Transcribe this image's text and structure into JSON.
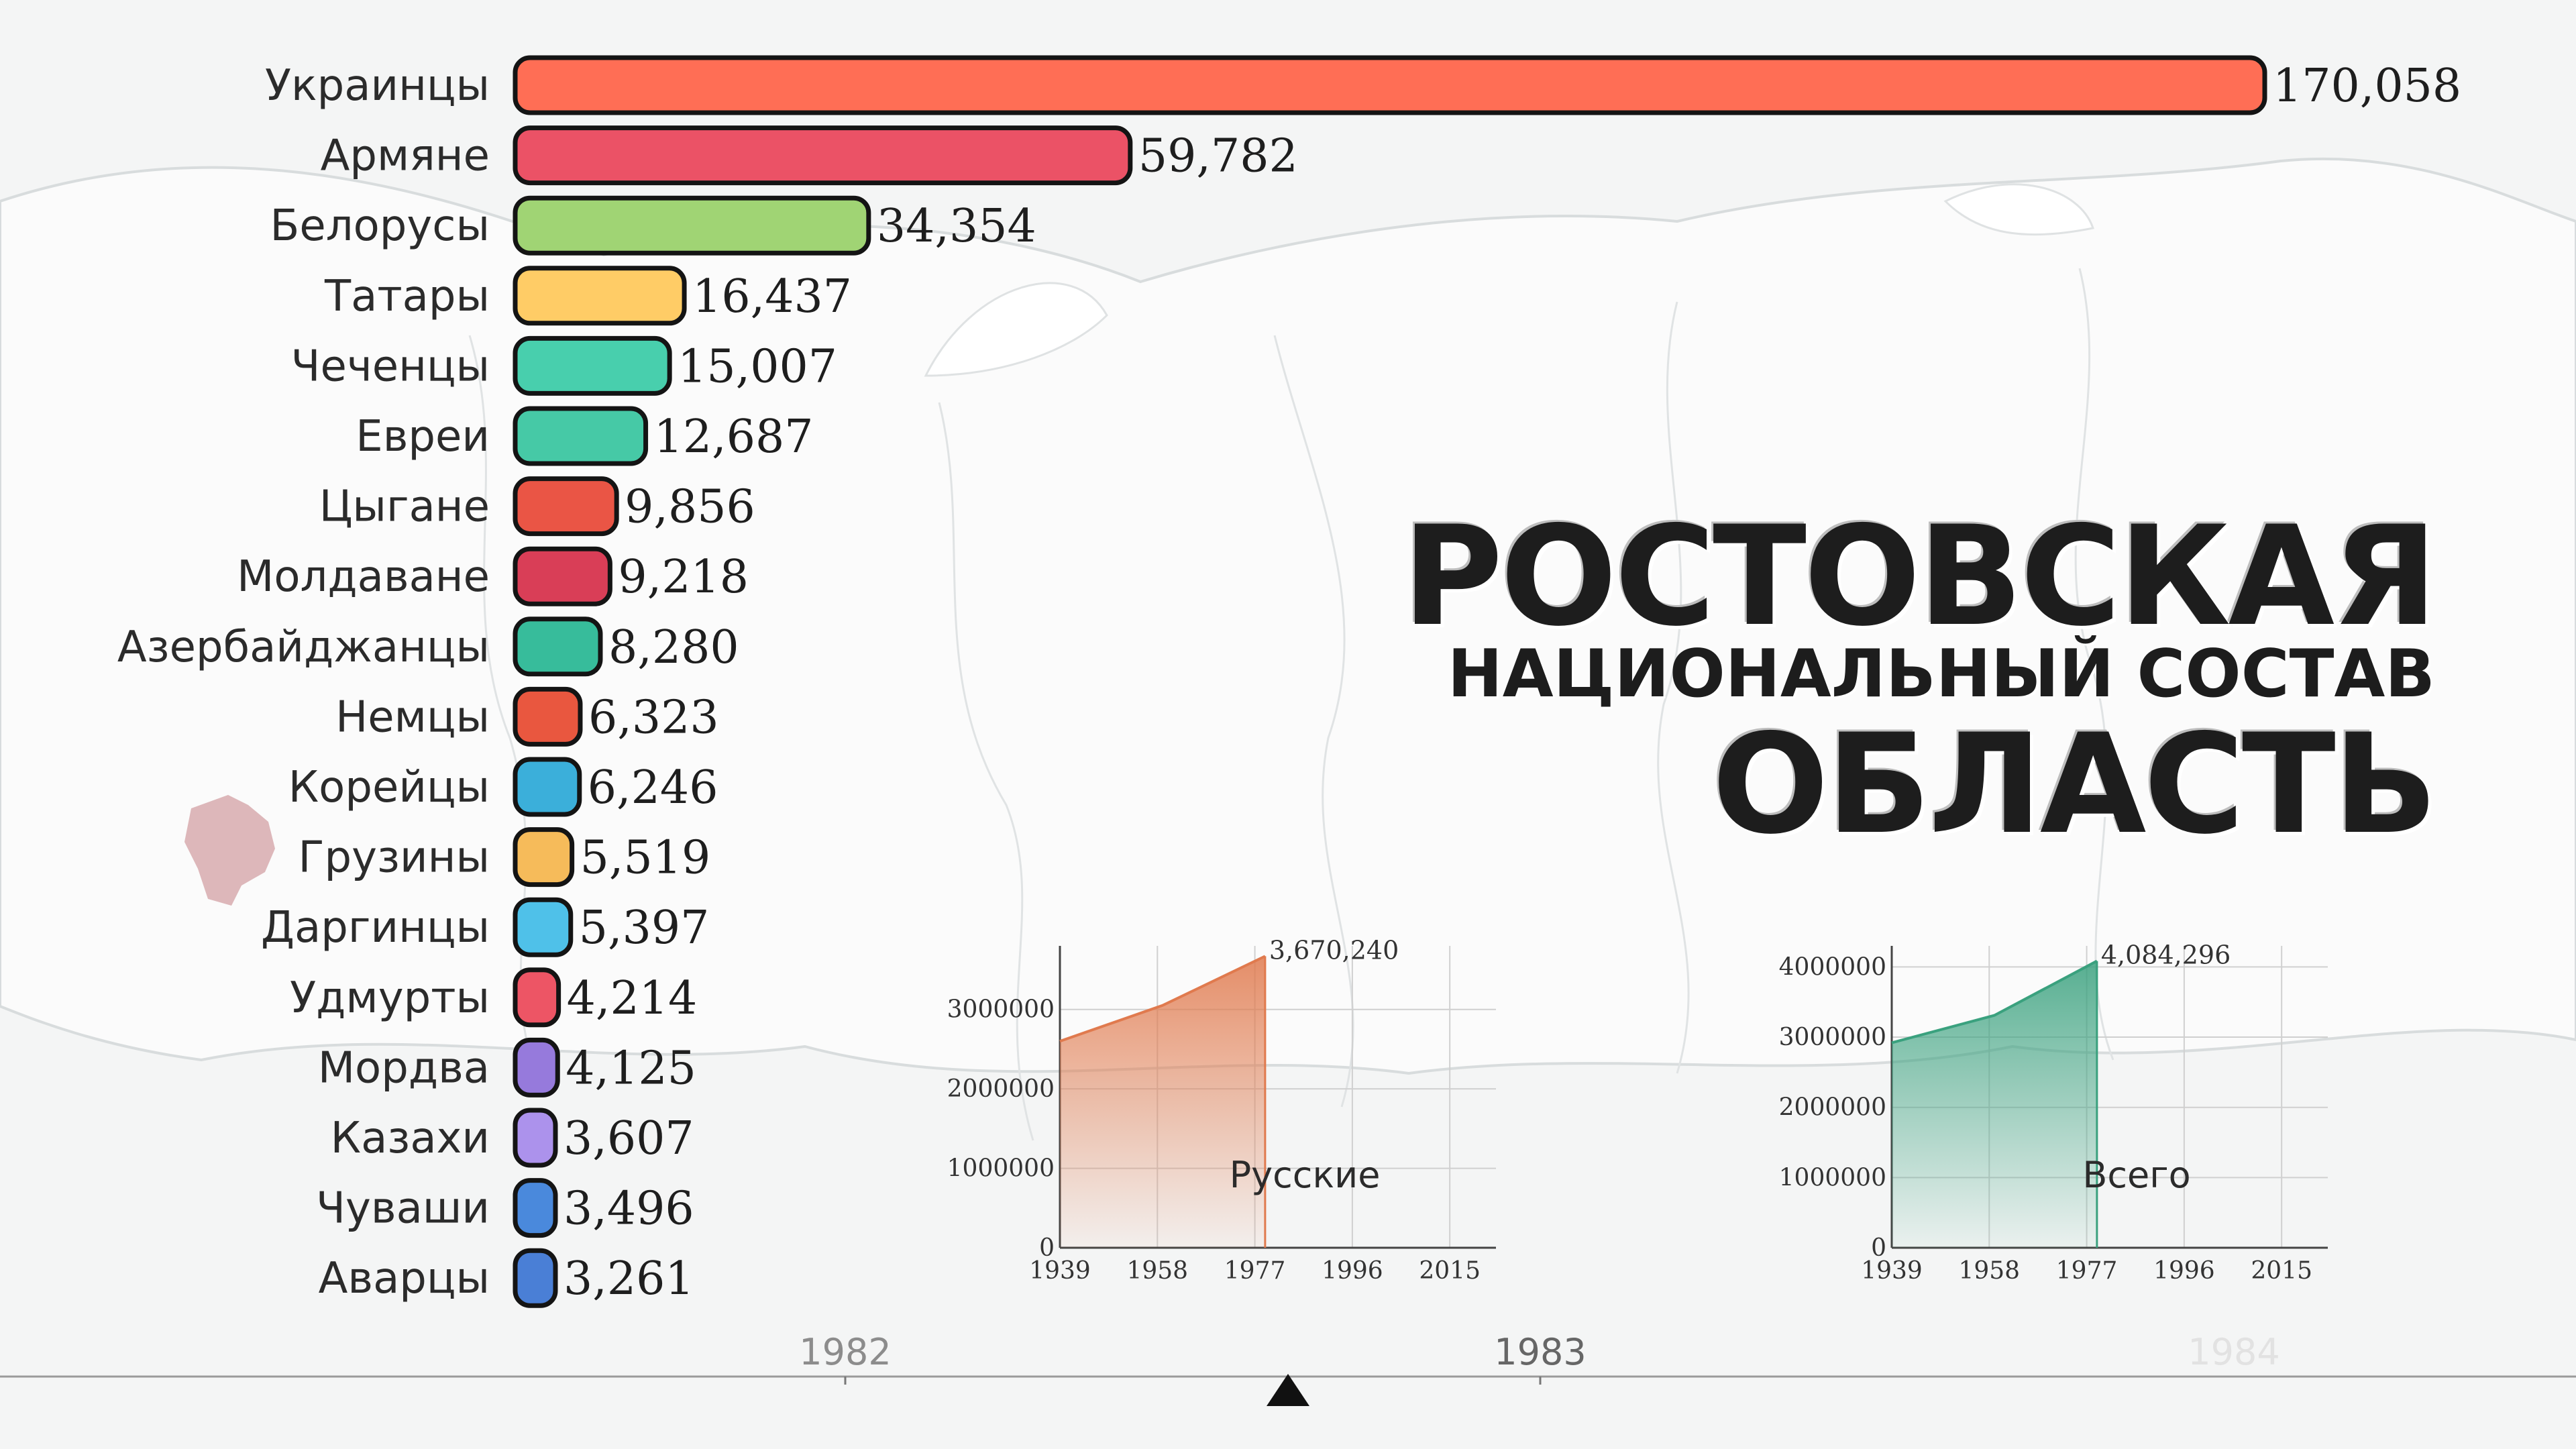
{
  "title": {
    "line1": "РОСТОВСКАЯ",
    "line2": "НАЦИОНАЛЬНЫЙ СОСТАВ",
    "line3": "ОБЛАСТЬ"
  },
  "chart_data": [
    {
      "type": "bar",
      "orientation": "horizontal",
      "categories": [
        "Украинцы",
        "Армяне",
        "Белорусы",
        "Татары",
        "Чеченцы",
        "Евреи",
        "Цыгане",
        "Молдаване",
        "Азербайджанцы",
        "Немцы",
        "Корейцы",
        "Грузины",
        "Даргинцы",
        "Удмурты",
        "Мордва",
        "Казахи",
        "Чуваши",
        "Аварцы"
      ],
      "values": [
        170058,
        59782,
        34354,
        16437,
        15007,
        12687,
        9856,
        9218,
        8280,
        6323,
        6246,
        5519,
        5397,
        4214,
        4125,
        3607,
        3496,
        3261
      ],
      "value_labels": [
        "170,058",
        "59,782",
        "34,354",
        "16,437",
        "15,007",
        "12,687",
        "9,856",
        "9,218",
        "8,280",
        "6,323",
        "6,246",
        "5,519",
        "5,397",
        "4,214",
        "4,125",
        "3,607",
        "3,496",
        "3,261"
      ],
      "colors": [
        "#ff6e55",
        "#eb5266",
        "#a0d474",
        "#ffcc66",
        "#48cfad",
        "#46c9a6",
        "#ea5545",
        "#d93e57",
        "#37bc9b",
        "#e9573f",
        "#3bafda",
        "#f6bb5a",
        "#4fc1e9",
        "#ed5565",
        "#967adc",
        "#ac92ec",
        "#4a89dc",
        "#4a7fd6"
      ],
      "xlim": [
        0,
        170058
      ]
    },
    {
      "type": "area",
      "label": "Русские",
      "x": [
        1939,
        1959,
        1979
      ],
      "y": [
        2600000,
        3050000,
        3670240
      ],
      "end_label": "3,670,240",
      "x_ticks": [
        "1939",
        "1958",
        "1977",
        "1996",
        "2015"
      ],
      "y_ticks": [
        "0",
        "1000000",
        "2000000",
        "3000000"
      ],
      "xlim": [
        1939,
        2024
      ],
      "ylim": [
        0,
        3800000
      ],
      "color": "#e07a4e"
    },
    {
      "type": "area",
      "label": "Всего",
      "x": [
        1939,
        1959,
        1979
      ],
      "y": [
        2920000,
        3310000,
        4084296
      ],
      "end_label": "4,084,296",
      "x_ticks": [
        "1939",
        "1958",
        "1977",
        "1996",
        "2015"
      ],
      "y_ticks": [
        "0",
        "1000000",
        "2000000",
        "3000000",
        "4000000"
      ],
      "xlim": [
        1939,
        2024
      ],
      "ylim": [
        0,
        4300000
      ],
      "color": "#3aa17e"
    }
  ],
  "timeline": {
    "labels": [
      "1982",
      "1983",
      "1984"
    ]
  }
}
